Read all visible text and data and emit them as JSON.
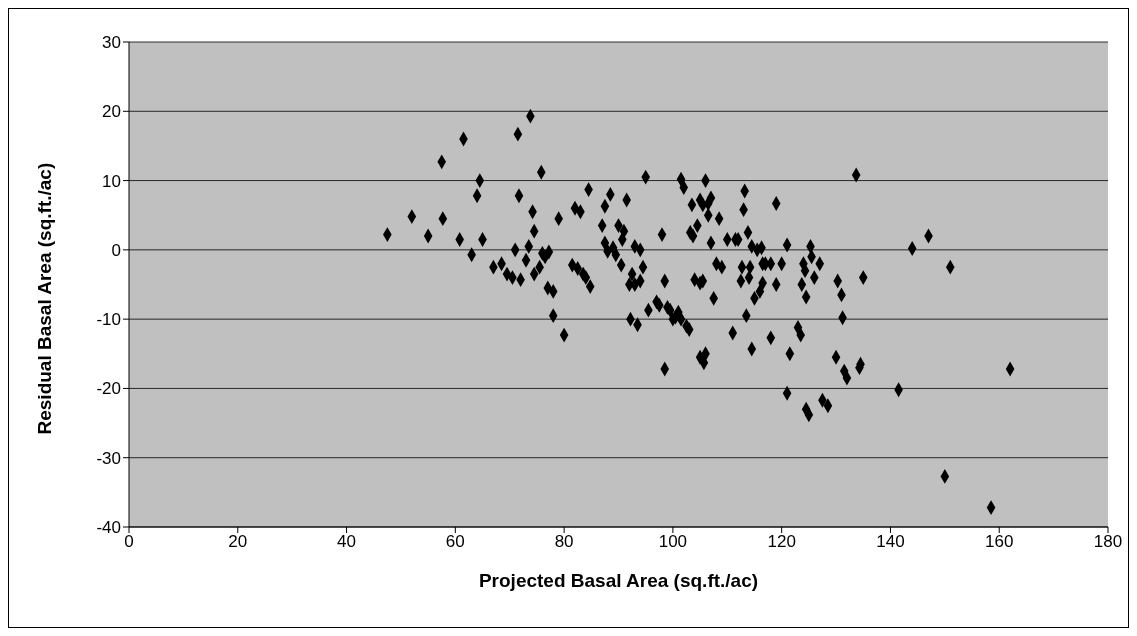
{
  "chart_data": {
    "type": "scatter",
    "xlabel": "Projected Basal Area (sq.ft./ac)",
    "ylabel": "Residual Basal Area (sq.ft./ac)",
    "xlim": [
      0,
      180
    ],
    "xticks": [
      0,
      20,
      40,
      60,
      80,
      100,
      120,
      140,
      160,
      180
    ],
    "ylim": [
      -40,
      30
    ],
    "yticks": [
      -40,
      -30,
      -20,
      -10,
      0,
      10,
      20,
      30
    ],
    "grid": "y",
    "legend": false,
    "marker": "diamond",
    "series": [
      {
        "color": "#000000",
        "x": [
          47.5,
          52,
          55,
          57.5,
          57.7,
          60.8,
          61.5,
          63,
          64,
          64.5,
          65,
          67,
          68.5,
          69.5,
          70.5,
          71,
          71.5,
          71.7,
          72,
          73,
          73.5,
          73.8,
          74.2,
          74.5,
          74.5,
          75.5,
          75.8,
          76,
          76.5,
          77,
          77.2,
          78,
          78,
          79,
          80,
          81.5,
          82,
          82.5,
          83,
          83.5,
          84,
          84.5,
          84.8,
          87,
          87.5,
          87.5,
          88,
          88.5,
          89,
          89.5,
          90,
          90.5,
          90.7,
          91,
          91.5,
          92,
          92.2,
          92.5,
          93,
          93,
          93.5,
          94,
          94,
          94.5,
          95,
          95.5,
          97,
          97.5,
          98,
          98.5,
          98.5,
          99,
          99.5,
          100,
          100.5,
          101,
          101.5,
          101.5,
          102,
          102.5,
          103,
          103.2,
          103.5,
          103.7,
          104,
          104.5,
          105,
          105,
          105,
          105.5,
          105.5,
          105.7,
          106,
          106,
          106.5,
          106.5,
          107,
          107,
          107.5,
          108,
          108.5,
          109,
          110,
          111,
          111.5,
          112,
          112.5,
          112.7,
          113,
          113.2,
          113.5,
          113.8,
          114,
          114.2,
          114.5,
          114.5,
          115,
          115.5,
          116,
          116.3,
          116.5,
          116.5,
          117,
          118,
          118,
          119,
          119,
          120,
          121,
          121,
          121.5,
          123,
          123.5,
          123.7,
          124,
          124.3,
          124.5,
          124.5,
          125,
          125.3,
          125.5,
          126,
          127,
          127.5,
          128.5,
          130,
          130.3,
          131,
          131.2,
          131.5,
          132,
          133.7,
          134.3,
          134.5,
          135,
          141.5,
          144,
          147,
          150,
          151,
          158.5,
          162
        ],
        "values": [
          2.2,
          4.8,
          2,
          12.7,
          4.5,
          1.5,
          16,
          -0.7,
          7.8,
          10,
          1.5,
          -2.5,
          -2,
          -3.5,
          -4,
          0,
          16.7,
          7.8,
          -4.3,
          -1.5,
          0.5,
          19.3,
          5.5,
          2.7,
          -3.5,
          -2.5,
          11.2,
          -0.5,
          -1,
          -5.5,
          -0.3,
          -6,
          -9.5,
          4.5,
          -12.3,
          -2.2,
          6,
          -2.7,
          5.5,
          -3.5,
          -4,
          8.7,
          -5.3,
          3.5,
          1,
          6.3,
          -0.2,
          8,
          0.3,
          -0.7,
          3.5,
          -2.2,
          1.5,
          2.7,
          7.2,
          -5,
          -10,
          -3.5,
          -5,
          0.5,
          -10.8,
          -4.5,
          0,
          -2.5,
          10.5,
          -8.7,
          -7.5,
          -8,
          2.2,
          -4.5,
          -17.2,
          -8.3,
          -8.7,
          -10,
          -9.7,
          -9,
          10.2,
          -10,
          9,
          -11,
          -11.5,
          2.5,
          6.5,
          2,
          -4.3,
          3.5,
          7.2,
          -4.8,
          -15.5,
          6.5,
          -4.5,
          -16.3,
          -15,
          10,
          6.7,
          5,
          7.5,
          1,
          -7,
          -2,
          4.5,
          -2.5,
          1.5,
          -12,
          1.5,
          1.5,
          -4.5,
          -2.5,
          5.8,
          8.5,
          -9.5,
          2.5,
          -4,
          -2.5,
          -14.3,
          0.5,
          -7,
          0,
          -6,
          0.3,
          -4.8,
          -2,
          -2,
          -12.7,
          -2,
          6.7,
          -5,
          -2,
          0.7,
          -20.7,
          -15,
          -11.2,
          -12.3,
          -5,
          -2,
          -3,
          -23,
          -6.8,
          -23.8,
          0.5,
          -1,
          -4,
          -2,
          -21.7,
          -22.5,
          -15.5,
          -4.5,
          -6.5,
          -9.8,
          -17.5,
          -18.5,
          10.8,
          -17,
          -16.5,
          -4,
          -20.2,
          0.2,
          2,
          -32.7,
          -2.5,
          -37.2,
          -17.2
        ]
      }
    ]
  }
}
